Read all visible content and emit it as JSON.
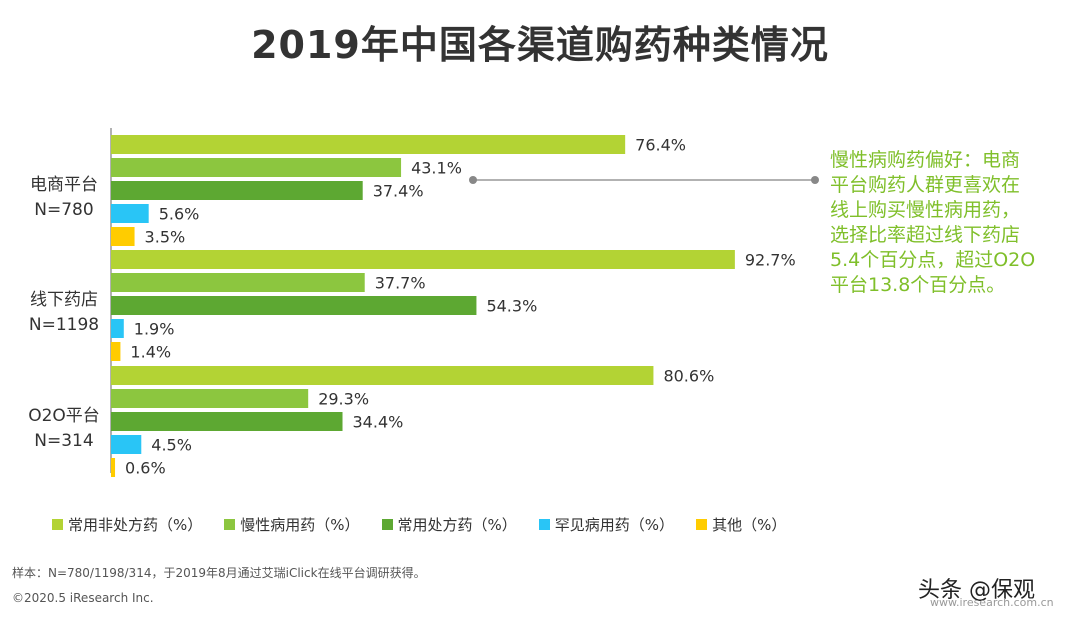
{
  "chart_data": {
    "type": "bar",
    "orientation": "horizontal",
    "title": "2019年中国各渠道购药种类情况",
    "categories": [
      {
        "name": "电商平台",
        "n": "N=780"
      },
      {
        "name": "线下药店",
        "n": "N=1198"
      },
      {
        "name": "O2O平台",
        "n": "N=314"
      }
    ],
    "series": [
      {
        "name": "常用非处方药（%）",
        "color": "#b3d334",
        "values": [
          76.4,
          92.7,
          80.6
        ]
      },
      {
        "name": "慢性病用药（%）",
        "color": "#8cc63f",
        "values": [
          43.1,
          37.7,
          29.3
        ]
      },
      {
        "name": "常用处方药（%）",
        "color": "#5da832",
        "values": [
          37.4,
          54.3,
          34.4
        ]
      },
      {
        "name": "罕见病用药（%）",
        "color": "#29c5f6",
        "values": [
          5.6,
          1.9,
          4.5
        ]
      },
      {
        "name": "其他（%）",
        "color": "#ffcc00",
        "values": [
          3.5,
          1.4,
          0.6
        ]
      }
    ],
    "value_labels": [
      [
        "76.4%",
        "43.1%",
        "37.4%",
        "5.6%",
        "3.5%"
      ],
      [
        "92.7%",
        "37.7%",
        "54.3%",
        "1.9%",
        "1.4%"
      ],
      [
        "80.6%",
        "29.3%",
        "34.4%",
        "4.5%",
        "0.6%"
      ]
    ],
    "xlim": [
      0,
      100
    ],
    "legend": "bottom",
    "grid": false
  },
  "annotation": {
    "lines": [
      "慢性病购药偏好：电商",
      "平台购药人群更喜欢在",
      "线上购买慢性病用药，",
      "选择比率超过线下药店",
      "5.4个百分点，超过O2O",
      "平台13.8个百分点。"
    ],
    "color": "#7fbf2a"
  },
  "footer": {
    "note": "样本：N=780/1198/314，于2019年8月通过艾瑞iClick在线平台调研获得。",
    "copyright": "©2020.5 iResearch Inc.",
    "watermark": "头条 @保观",
    "site": "www.iresearch.com.cn"
  }
}
